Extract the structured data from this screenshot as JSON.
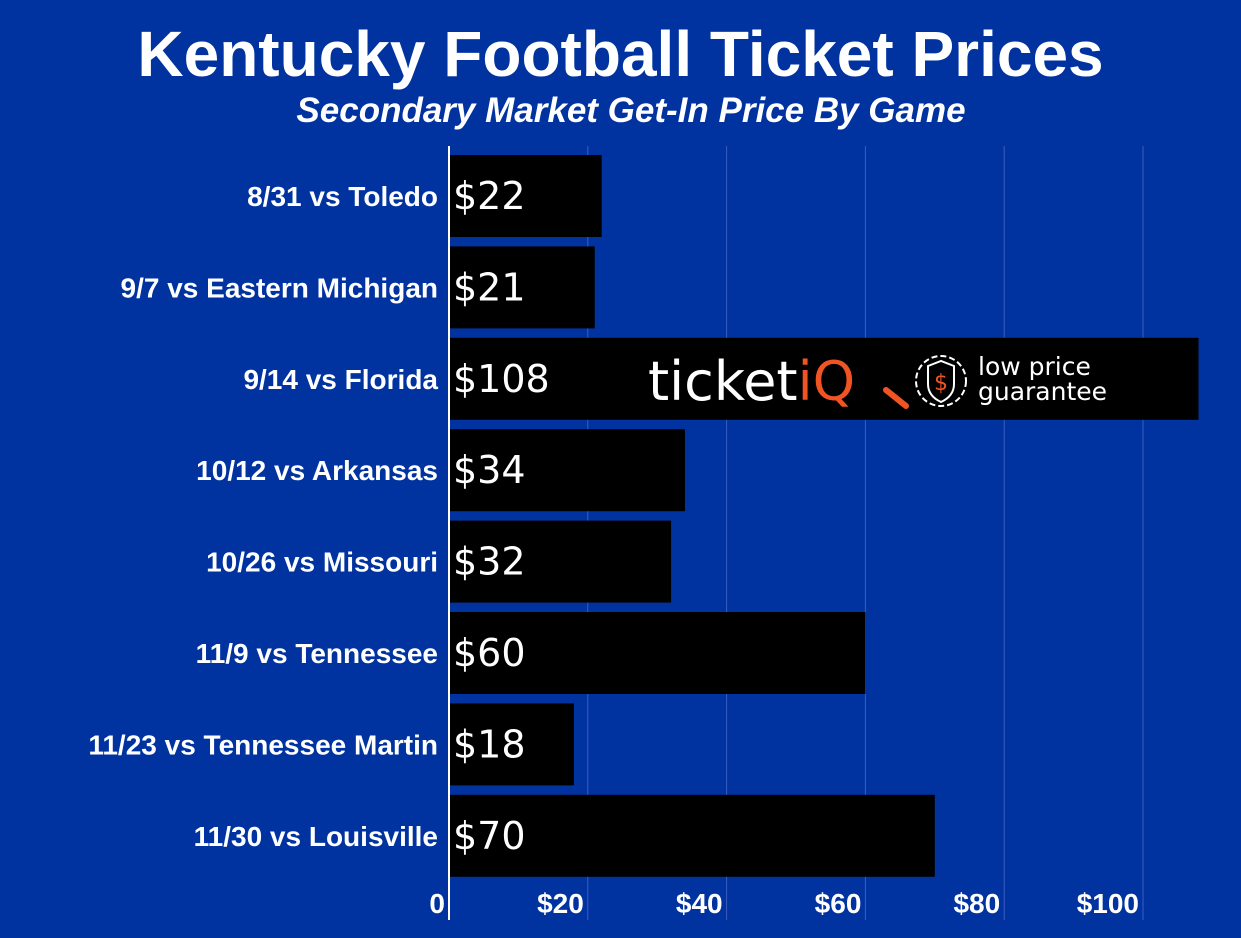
{
  "chart_data": {
    "type": "bar",
    "orientation": "horizontal",
    "title": "Kentucky Football Ticket Prices",
    "subtitle": "Secondary Market Get-In Price By Game",
    "categories": [
      "8/31 vs Toledo",
      "9/7 vs Eastern Michigan",
      "9/14 vs Florida",
      "10/12 vs Arkansas",
      "10/26 vs Missouri",
      "11/9 vs Tennessee",
      "11/23 vs Tennessee Martin",
      "11/30 vs Louisville"
    ],
    "values": [
      22,
      21,
      108,
      34,
      32,
      60,
      18,
      70
    ],
    "data_labels": [
      "$22",
      "$21",
      "$108",
      "$34",
      "$32",
      "$60",
      "$18",
      "$70"
    ],
    "xlim": [
      0,
      112
    ],
    "xticks": [
      0,
      20,
      40,
      60,
      80,
      100
    ],
    "xtick_labels": [
      "0",
      "$20",
      "$40",
      "$60",
      "$80",
      "$100"
    ],
    "grid": true,
    "colors": {
      "background": "#0033a0",
      "bar": "#000000",
      "text": "#ffffff",
      "grid": "#3a5cc0",
      "brand_accent": "#f05423"
    }
  },
  "logo": {
    "brand": "ticketiQ",
    "tagline_line1": "low price",
    "tagline_line2": "guarantee"
  }
}
